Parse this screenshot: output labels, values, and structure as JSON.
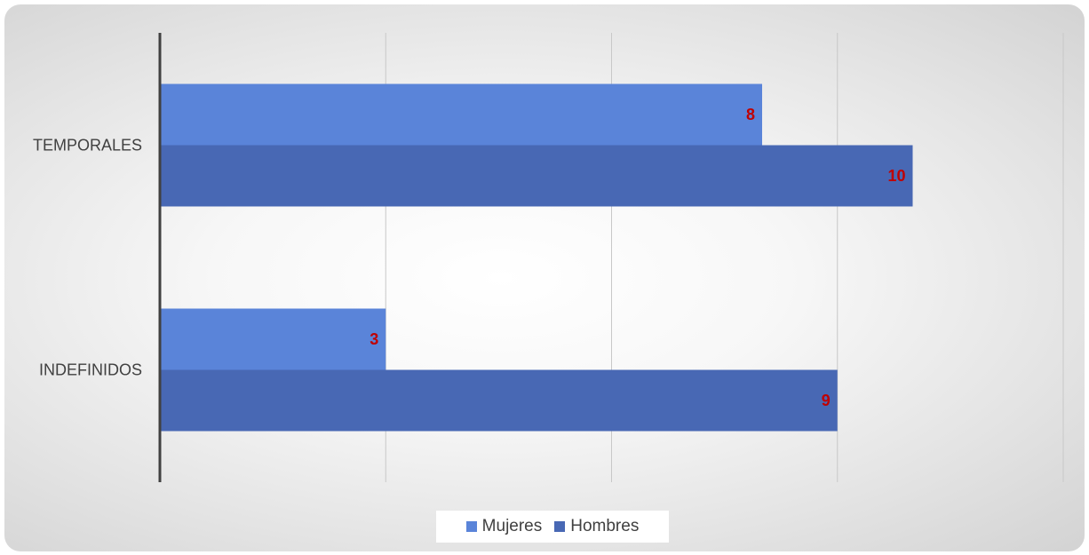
{
  "chart_data": {
    "type": "bar",
    "orientation": "horizontal",
    "categories": [
      "TEMPORALES",
      "INDEFINIDOS"
    ],
    "series": [
      {
        "name": "Mujeres",
        "values": [
          8,
          3
        ],
        "color": "#5a84d9"
      },
      {
        "name": "Hombres",
        "values": [
          10,
          9
        ],
        "color": "#4868b4"
      }
    ],
    "xlim": [
      0,
      12
    ],
    "xticks": [
      0,
      3,
      6,
      9,
      12
    ],
    "grid": true,
    "legend_position": "bottom",
    "data_label_color": "#c00000"
  }
}
